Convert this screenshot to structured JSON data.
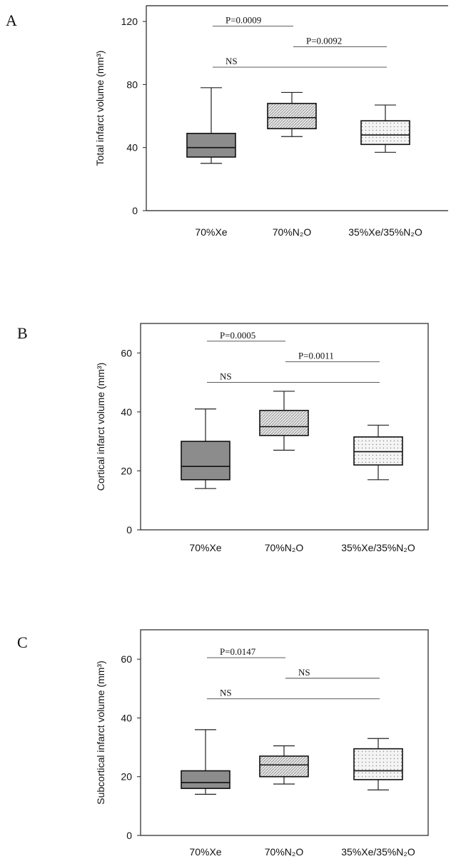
{
  "colors": {
    "xe_fill": "#8c8c8c",
    "n2o_fill": "#e4e4e4",
    "mix_fill": "#f2f2f2",
    "line": "#222222"
  },
  "chart_data": [
    {
      "type": "box",
      "panel": "A",
      "ylabel": "Total infarct volume (mm³)",
      "ylim": [
        0,
        130
      ],
      "yticks": [
        0,
        40,
        80,
        120
      ],
      "frame": "open-top-line",
      "categories": [
        "70%Xe",
        "70%N₂O",
        "35%Xe/35%N₂O"
      ],
      "series": [
        {
          "min": 30,
          "q1": 34,
          "median": 40,
          "q3": 49,
          "max": 78,
          "pattern": "dark-fill"
        },
        {
          "min": 47,
          "q1": 52,
          "median": 59,
          "q3": 68,
          "max": 75,
          "pattern": "hatched"
        },
        {
          "min": 37,
          "q1": 42,
          "median": 48,
          "q3": 57,
          "max": 67,
          "pattern": "dotted"
        }
      ],
      "annotations": [
        {
          "text": "P=0.0009",
          "from": 0,
          "to": 1,
          "y": 117
        },
        {
          "text": "P=0.0092",
          "from": 1,
          "to": 2,
          "y": 104
        },
        {
          "text": "NS",
          "from": 0,
          "to": 2,
          "y": 91
        }
      ]
    },
    {
      "type": "box",
      "panel": "B",
      "ylabel": "Cortical infarct volume (mm³)",
      "ylim": [
        0,
        70
      ],
      "yticks": [
        0,
        20,
        40,
        60
      ],
      "frame": "box",
      "categories": [
        "70%Xe",
        "70%N₂O",
        "35%Xe/35%N₂O"
      ],
      "series": [
        {
          "min": 14,
          "q1": 17,
          "median": 21.5,
          "q3": 30,
          "max": 41,
          "pattern": "dark-fill"
        },
        {
          "min": 27,
          "q1": 32,
          "median": 35,
          "q3": 40.5,
          "max": 47,
          "pattern": "hatched"
        },
        {
          "min": 17,
          "q1": 22,
          "median": 26.5,
          "q3": 31.5,
          "max": 35.5,
          "pattern": "dotted"
        }
      ],
      "annotations": [
        {
          "text": "P=0.0005",
          "from": 0,
          "to": 1,
          "y": 64
        },
        {
          "text": "P=0.0011",
          "from": 1,
          "to": 2,
          "y": 57
        },
        {
          "text": "NS",
          "from": 0,
          "to": 2,
          "y": 50
        }
      ]
    },
    {
      "type": "box",
      "panel": "C",
      "ylabel": "Subcortical infarct volume (mm³)",
      "ylim": [
        0,
        70
      ],
      "yticks": [
        0,
        20,
        40,
        60
      ],
      "frame": "box",
      "categories": [
        "70%Xe",
        "70%N₂O",
        "35%Xe/35%N₂O"
      ],
      "series": [
        {
          "min": 14,
          "q1": 16,
          "median": 18,
          "q3": 22,
          "max": 36,
          "pattern": "dark-fill"
        },
        {
          "min": 17.5,
          "q1": 20,
          "median": 24,
          "q3": 27,
          "max": 30.5,
          "pattern": "hatched"
        },
        {
          "min": 15.5,
          "q1": 19,
          "median": 22,
          "q3": 29.5,
          "max": 33,
          "pattern": "dotted"
        }
      ],
      "annotations": [
        {
          "text": "P=0.0147",
          "from": 0,
          "to": 1,
          "y": 60.5
        },
        {
          "text": "NS",
          "from": 1,
          "to": 2,
          "y": 53.5
        },
        {
          "text": "NS",
          "from": 0,
          "to": 2,
          "y": 46.5
        }
      ]
    }
  ]
}
